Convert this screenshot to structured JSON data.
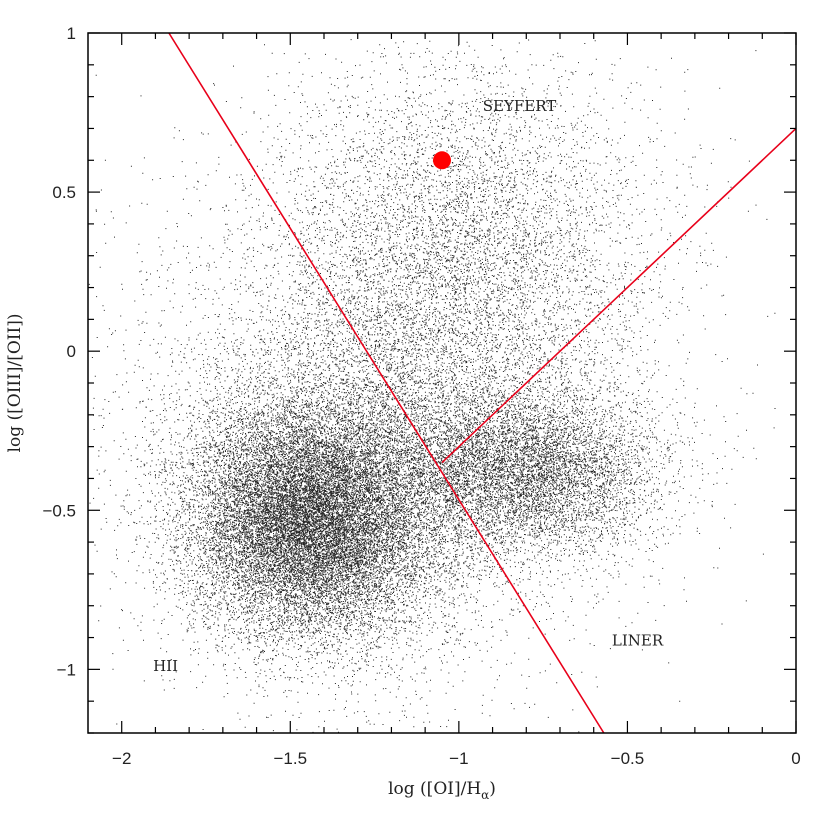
{
  "chart_data": {
    "type": "scatter",
    "xlabel": "log ([OI]/H",
    "xlabel_sub": "α",
    "xlabel_close": ")",
    "ylabel": "log ([OIII]/[OII])",
    "xlim": [
      -2.1,
      0
    ],
    "ylim": [
      -1.2,
      1
    ],
    "x_ticks": [
      -2,
      -1.5,
      -1,
      -0.5,
      0
    ],
    "x_tick_labels": [
      "−2",
      "−1.5",
      "−1",
      "−0.5",
      "0"
    ],
    "y_ticks": [
      1,
      0.5,
      0,
      -0.5,
      -1
    ],
    "y_tick_labels": [
      "1",
      "0.5",
      "0",
      "−0.5",
      "−1"
    ],
    "regions": [
      {
        "label": "SEYFERT",
        "x": -0.82,
        "y": 0.77
      },
      {
        "label": "LINER",
        "x": -0.47,
        "y": -0.91
      },
      {
        "label": "HII",
        "x": -1.87,
        "y": -0.99
      }
    ],
    "dividing_lines": [
      {
        "name": "HII boundary",
        "points": [
          [
            -1.86,
            1.0
          ],
          [
            -0.57,
            -1.2
          ]
        ]
      },
      {
        "name": "Seyfert/LINER boundary",
        "points": [
          [
            -1.05,
            -0.35
          ],
          [
            0.0,
            0.7
          ]
        ]
      }
    ],
    "highlight_point": {
      "x": -1.05,
      "y": 0.6
    },
    "density_clusters": [
      {
        "cx": -1.45,
        "cy": -0.55,
        "sx": 0.17,
        "sy": 0.17,
        "n": 15000
      },
      {
        "cx": -1.35,
        "cy": -0.4,
        "sx": 0.25,
        "sy": 0.25,
        "n": 8000
      },
      {
        "cx": -0.8,
        "cy": -0.38,
        "sx": 0.2,
        "sy": 0.13,
        "n": 7000
      },
      {
        "cx": -1.0,
        "cy": 0.3,
        "sx": 0.28,
        "sy": 0.3,
        "n": 6500
      },
      {
        "cx": -1.2,
        "cy": -0.2,
        "sx": 0.38,
        "sy": 0.42,
        "n": 4500
      }
    ],
    "colors": {
      "points": "#000000",
      "lines": "#e8001a",
      "highlight": "#ff0000"
    }
  }
}
